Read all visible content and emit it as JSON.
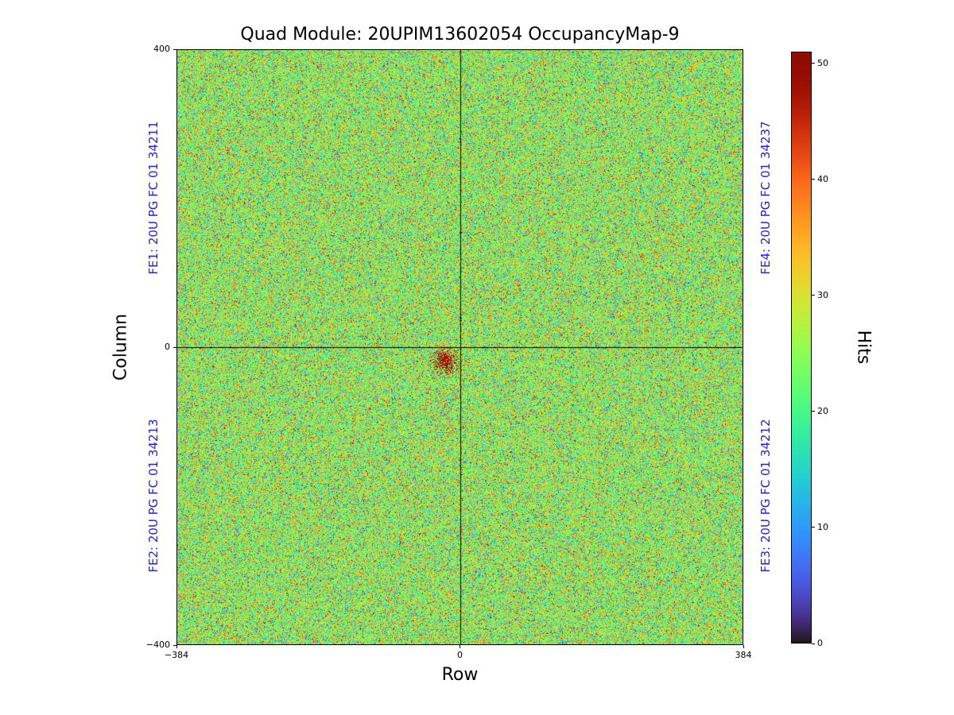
{
  "chart_data": {
    "type": "heatmap",
    "title": "Quad Module: 20UPIM13602054 OccupancyMap-9",
    "xlabel": "Row",
    "ylabel": "Column",
    "x_range": [
      -384,
      384
    ],
    "y_range": [
      -400,
      400
    ],
    "x_ticks": [
      -384,
      0,
      384
    ],
    "y_ticks": [
      400,
      0,
      -400
    ],
    "grid": false,
    "colormap": "turbo",
    "colorbar": {
      "label": "Hits",
      "vmin": 0,
      "vmax": 51,
      "ticks": [
        0,
        10,
        20,
        30,
        40,
        50
      ],
      "position": "right"
    },
    "fe_labels": [
      {
        "text": "FE1: 20U PG FC 01 34211",
        "side": "left",
        "half": "top"
      },
      {
        "text": "FE2: 20U PG FC 01 34213",
        "side": "left",
        "half": "bottom"
      },
      {
        "text": "FE4: 20U PG FC 01 34237",
        "side": "right",
        "half": "top"
      },
      {
        "text": "FE3: 20U PG FC 01 34212",
        "side": "right",
        "half": "bottom"
      }
    ],
    "label_color": "#2222CC",
    "divider_color": "#000000",
    "quadrant_divider": {
      "row": 0,
      "column": 0
    },
    "noise": {
      "description": "uniform random occupancy noise across all four front-end chips, hits mostly 15-35 (green/teal/yellow) with scattered low (dark blue) and high (red) outlier pixels",
      "mean_hits": 25,
      "std_hits": 8,
      "outlier_fraction": 0.1,
      "hotspot": {
        "row": -20,
        "column": -18,
        "radius": 20,
        "peak_hits": 51,
        "description": "dense high-occupancy (dark red) cluster just below-left of the module centre"
      }
    },
    "seed": 1360254
  }
}
